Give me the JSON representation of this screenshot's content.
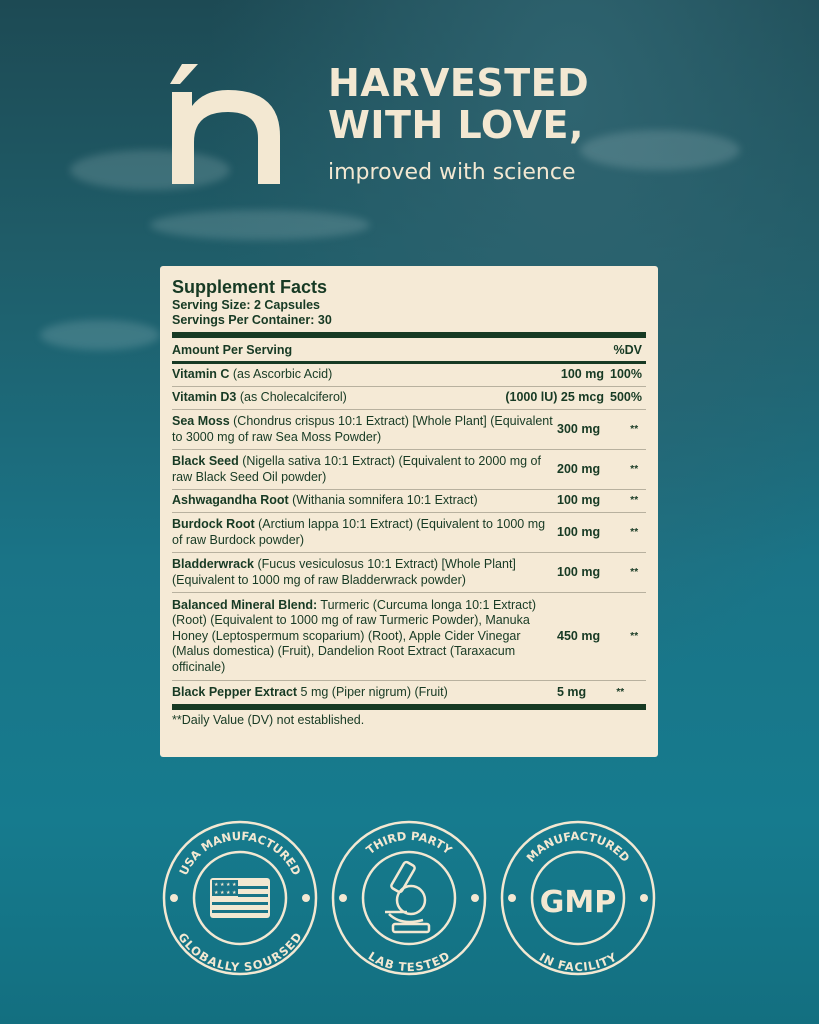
{
  "brand": {
    "logo_letter": "ń"
  },
  "headline": {
    "line1": "HARVESTED",
    "line2": "WITH LOVE,",
    "sub": "improved with science"
  },
  "facts": {
    "title": "Supplement Facts",
    "serving_size": "Serving Size: 2 Capsules",
    "servings_per_container": "Servings Per Container: 30",
    "amount_header": "Amount Per Serving",
    "dv_header": "%DV",
    "rows": [
      {
        "name": "Vitamin C",
        "desc": " (as Ascorbic Acid)",
        "amount": "100 mg",
        "dv": "100%"
      },
      {
        "name": "Vitamin D3",
        "desc": " (as Cholecalciferol)",
        "amount": "(1000 lU) 25 mcg",
        "dv": "500%"
      },
      {
        "name": "Sea Moss",
        "desc": " (Chondrus crispus 10:1 Extract) [Whole Plant] (Equivalent to 3000 mg of raw Sea Moss Powder)",
        "amount": "300 mg",
        "dv": "**"
      },
      {
        "name": "Black Seed",
        "desc": " (Nigella sativa 10:1 Extract) (Equivalent to 2000 mg of raw Black Seed Oil powder)",
        "amount": "200 mg",
        "dv": "**"
      },
      {
        "name": "Ashwagandha Root",
        "desc": " (Withania somnifera 10:1 Extract)",
        "amount": "100 mg",
        "dv": "**"
      },
      {
        "name": "Burdock Root",
        "desc": " (Arctium lappa 10:1 Extract) (Equivalent to 1000 mg of raw Burdock powder)",
        "amount": "100 mg",
        "dv": "**"
      },
      {
        "name": "Bladderwrack",
        "desc": " (Fucus vesiculosus 10:1 Extract) [Whole Plant] (Equivalent to 1000 mg of raw Bladderwrack powder)",
        "amount": "100 mg",
        "dv": "**"
      },
      {
        "name": "Balanced Mineral Blend:",
        "desc": " Turmeric (Curcuma longa 10:1 Extract) (Root) (Equivalent to 1000 mg of raw Turmeric Powder), Manuka Honey (Leptospermum scoparium) (Root), Apple Cider Vinegar (Malus domestica) (Fruit), Dandelion Root Extract (Taraxacum officinale)",
        "amount": "450 mg",
        "dv": "**"
      },
      {
        "name": "Black Pepper Extract",
        "desc": " 5 mg (Piper nigrum) (Fruit)",
        "amount": "5 mg",
        "dv": "**"
      }
    ],
    "footnote": "**Daily Value (DV) not established."
  },
  "badges": [
    {
      "top": "USA MANUFACTURED",
      "bottom": "GLOBALLY SOURSED",
      "icon": "usa-flag-icon"
    },
    {
      "top": "THIRD PARTY",
      "bottom": "LAB TESTED",
      "icon": "microscope-icon"
    },
    {
      "top": "MANUFACTURED",
      "bottom": "IN FACILITY",
      "icon": "gmp-icon",
      "center": "GMP"
    }
  ],
  "colors": {
    "cream": "#f3e8d2",
    "panel": "#f5ead6",
    "ink": "#173a24",
    "ocean": "#1a7487"
  }
}
